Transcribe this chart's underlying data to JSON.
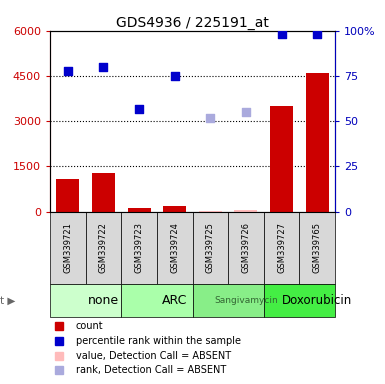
{
  "title": "GDS4936 / 225191_at",
  "samples": [
    "GSM339721",
    "GSM339722",
    "GSM339723",
    "GSM339724",
    "GSM339725",
    "GSM339726",
    "GSM339727",
    "GSM339765"
  ],
  "agents": [
    {
      "label": "none",
      "span": [
        0,
        2
      ],
      "color": "#ccffcc"
    },
    {
      "label": "ARC",
      "span": [
        2,
        4
      ],
      "color": "#aaffaa"
    },
    {
      "label": "Sangivamycin",
      "span": [
        4,
        6
      ],
      "color": "#88ee88"
    },
    {
      "label": "Doxorubicin",
      "span": [
        6,
        8
      ],
      "color": "#44ee44"
    }
  ],
  "bar_values": [
    1100,
    1300,
    130,
    185,
    30,
    60,
    3500,
    4600
  ],
  "bar_absent": [
    false,
    false,
    false,
    false,
    true,
    true,
    false,
    false
  ],
  "scatter_pct": [
    78,
    80,
    57,
    75,
    52,
    55,
    98,
    98
  ],
  "scatter_absent": [
    false,
    false,
    false,
    false,
    true,
    true,
    false,
    false
  ],
  "left_ylim": [
    0,
    6000
  ],
  "left_yticks": [
    0,
    1500,
    3000,
    4500,
    6000
  ],
  "left_yticklabels": [
    "0",
    "1500",
    "3000",
    "4500",
    "6000"
  ],
  "right_ylim": [
    0,
    100
  ],
  "right_yticks": [
    0,
    25,
    50,
    75,
    100
  ],
  "right_yticklabels": [
    "0",
    "25",
    "50",
    "75",
    "100%"
  ],
  "bar_color_present": "#cc0000",
  "bar_color_absent": "#ffbbbb",
  "scatter_color_present": "#0000cc",
  "scatter_color_absent": "#aaaadd",
  "bar_width": 0.65,
  "grid_color": "black",
  "figsize": [
    3.85,
    3.84
  ],
  "dpi": 100
}
